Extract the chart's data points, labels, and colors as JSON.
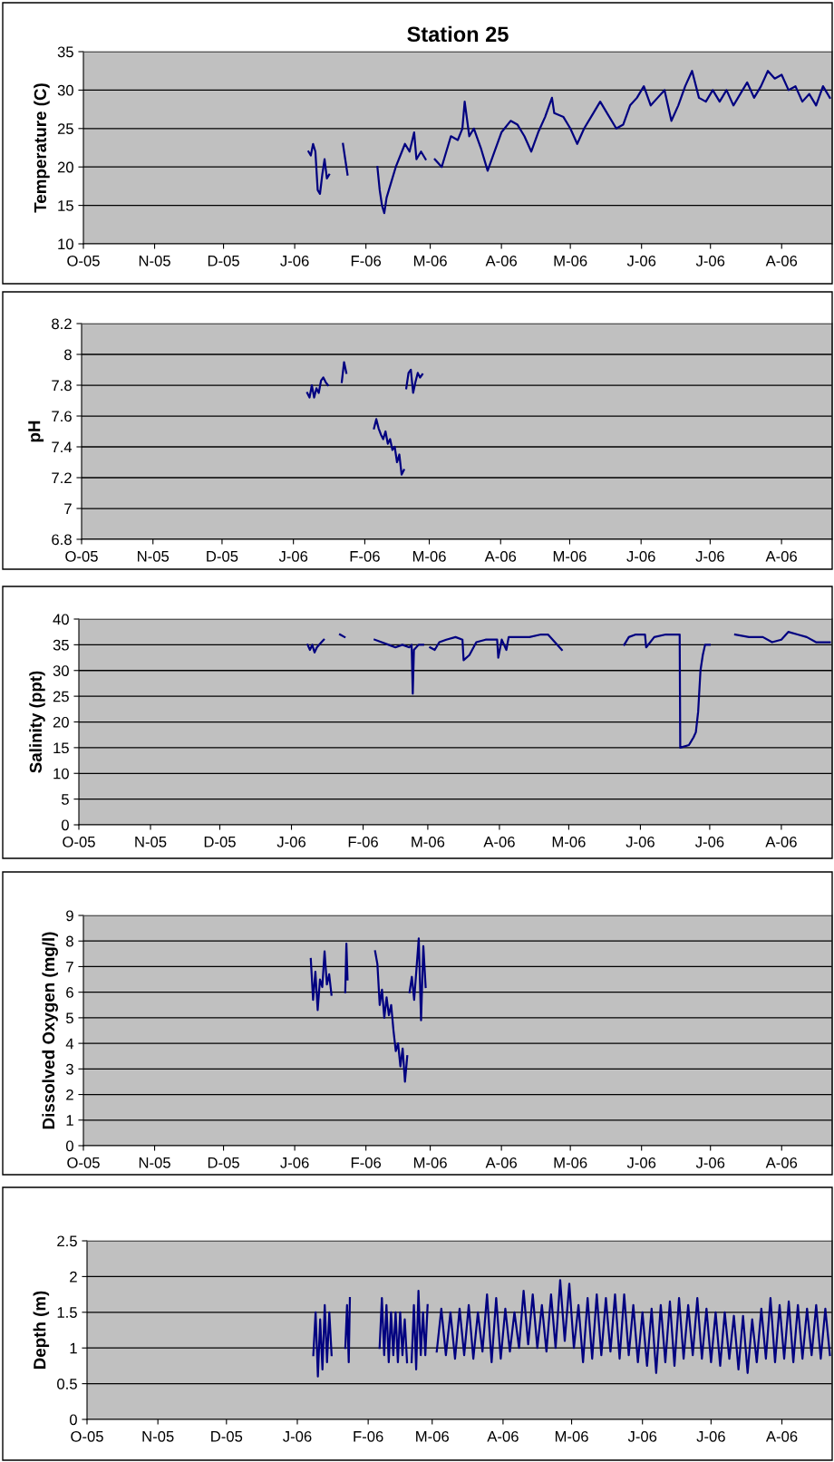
{
  "chart_data": [
    {
      "type": "line",
      "title": "Station 25",
      "ylabel": "Temperature (C)",
      "grid": "y",
      "xlim": [
        "2005-10-01",
        "2006-08-23"
      ],
      "xticks": [
        {
          "value": "2005-10-01",
          "label": "O-05"
        },
        {
          "value": "2005-11-01",
          "label": "N-05"
        },
        {
          "value": "2005-12-01",
          "label": "D-05"
        },
        {
          "value": "2006-01-01",
          "label": "J-06"
        },
        {
          "value": "2006-02-01",
          "label": "F-06"
        },
        {
          "value": "2006-03-01",
          "label": "M-06"
        },
        {
          "value": "2006-04-01",
          "label": "A-06"
        },
        {
          "value": "2006-05-01",
          "label": "M-06"
        },
        {
          "value": "2006-06-01",
          "label": "J-06"
        },
        {
          "value": "2006-07-01",
          "label": "J-06"
        },
        {
          "value": "2006-08-01",
          "label": "A-06"
        }
      ],
      "ylim": [
        10,
        35
      ],
      "yticks": [
        10,
        15,
        20,
        25,
        30,
        35
      ],
      "x": [
        "2006-01-07",
        "2006-01-08",
        "2006-01-09",
        "2006-01-10",
        "2006-01-11",
        "2006-01-12",
        "2006-01-13",
        "2006-01-14",
        "2006-01-15",
        "2006-01-16",
        "2006-01-19",
        "2006-01-22",
        "2006-01-23",
        "2006-01-24",
        "2006-01-30",
        "2006-02-06",
        "2006-02-07",
        "2006-02-08",
        "2006-02-09",
        "2006-02-10",
        "2006-02-12",
        "2006-02-14",
        "2006-02-16",
        "2006-02-18",
        "2006-02-20",
        "2006-02-22",
        "2006-02-23",
        "2006-02-25",
        "2006-02-27",
        "2006-03-01",
        "2006-03-03",
        "2006-03-06",
        "2006-03-10",
        "2006-03-13",
        "2006-03-15",
        "2006-03-16",
        "2006-03-18",
        "2006-03-20",
        "2006-03-23",
        "2006-03-26",
        "2006-03-29",
        "2006-04-01",
        "2006-04-05",
        "2006-04-08",
        "2006-04-11",
        "2006-04-14",
        "2006-04-17",
        "2006-04-20",
        "2006-04-23",
        "2006-04-24",
        "2006-04-28",
        "2006-05-01",
        "2006-05-04",
        "2006-05-07",
        "2006-05-11",
        "2006-05-14",
        "2006-05-17",
        "2006-05-21",
        "2006-05-24",
        "2006-05-27",
        "2006-05-30",
        "2006-06-02",
        "2006-06-05",
        "2006-06-08",
        "2006-06-11",
        "2006-06-14",
        "2006-06-17",
        "2006-06-20",
        "2006-06-23",
        "2006-06-26",
        "2006-06-29",
        "2006-07-02",
        "2006-07-05",
        "2006-07-08",
        "2006-07-11",
        "2006-07-14",
        "2006-07-17",
        "2006-07-20",
        "2006-07-23",
        "2006-07-26",
        "2006-07-29",
        "2006-08-01",
        "2006-08-04",
        "2006-08-07",
        "2006-08-10",
        "2006-08-13",
        "2006-08-16",
        "2006-08-19",
        "2006-08-22"
      ],
      "series": [
        {
          "color": "#000080",
          "values": [
            22,
            21.5,
            23,
            22,
            17,
            16.5,
            19,
            21,
            18.5,
            19,
            null,
            23,
            21,
            19,
            null,
            20,
            17,
            15,
            14,
            16,
            18,
            20,
            21.5,
            23,
            22,
            24.5,
            21,
            22,
            21,
            null,
            21,
            20,
            24,
            23.5,
            25,
            28.5,
            24,
            25,
            22.5,
            19.5,
            22,
            24.5,
            26,
            25.5,
            24,
            22,
            24.5,
            26.5,
            29,
            27,
            26.5,
            25,
            23,
            25,
            27,
            28.5,
            27,
            25,
            25.5,
            28,
            29,
            30.5,
            28,
            29,
            30,
            26,
            28,
            30.5,
            32.5,
            29,
            28.5,
            30,
            28.5,
            30,
            28,
            29.5,
            31,
            29,
            30.5,
            32.5,
            31.5,
            32,
            30,
            30.5,
            28.5,
            29.5,
            28,
            30.5,
            29
          ]
        }
      ]
    },
    {
      "type": "line",
      "ylabel": "pH",
      "grid": "y",
      "xlim": [
        "2005-10-01",
        "2006-08-23"
      ],
      "xticks": [
        {
          "value": "2005-10-01",
          "label": "O-05"
        },
        {
          "value": "2005-11-01",
          "label": "N-05"
        },
        {
          "value": "2005-12-01",
          "label": "D-05"
        },
        {
          "value": "2006-01-01",
          "label": "J-06"
        },
        {
          "value": "2006-02-01",
          "label": "F-06"
        },
        {
          "value": "2006-03-01",
          "label": "M-06"
        },
        {
          "value": "2006-04-01",
          "label": "A-06"
        },
        {
          "value": "2006-05-01",
          "label": "M-06"
        },
        {
          "value": "2006-06-01",
          "label": "J-06"
        },
        {
          "value": "2006-07-01",
          "label": "J-06"
        },
        {
          "value": "2006-08-01",
          "label": "A-06"
        }
      ],
      "ylim": [
        6.8,
        8.2
      ],
      "yticks": [
        6.8,
        7,
        7.2,
        7.4,
        7.6,
        7.8,
        8,
        8.2
      ],
      "x": [
        "2006-01-07",
        "2006-01-08",
        "2006-01-09",
        "2006-01-10",
        "2006-01-11",
        "2006-01-12",
        "2006-01-13",
        "2006-01-14",
        "2006-01-15",
        "2006-01-16",
        "2006-01-19",
        "2006-01-22",
        "2006-01-23",
        "2006-01-24",
        "2006-01-30",
        "2006-02-05",
        "2006-02-06",
        "2006-02-07",
        "2006-02-08",
        "2006-02-09",
        "2006-02-10",
        "2006-02-11",
        "2006-02-12",
        "2006-02-13",
        "2006-02-14",
        "2006-02-15",
        "2006-02-16",
        "2006-02-17",
        "2006-02-18",
        "2006-02-18T18:00",
        "2006-02-19",
        "2006-02-20",
        "2006-02-21",
        "2006-02-22",
        "2006-02-23",
        "2006-02-24",
        "2006-02-25",
        "2006-02-26"
      ],
      "series": [
        {
          "color": "#000080",
          "values": [
            7.75,
            7.72,
            7.8,
            7.72,
            7.78,
            7.75,
            7.83,
            7.85,
            7.82,
            7.8,
            null,
            7.82,
            7.95,
            7.88,
            null,
            7.52,
            7.58,
            7.52,
            7.48,
            7.45,
            7.5,
            7.42,
            7.45,
            7.38,
            7.4,
            7.3,
            7.35,
            7.22,
            7.25,
            null,
            7.78,
            7.88,
            7.9,
            7.75,
            7.82,
            7.88,
            7.85,
            7.87
          ]
        }
      ]
    },
    {
      "type": "line",
      "ylabel": "Salinity (ppt)",
      "grid": "y",
      "xlim": [
        "2005-10-01",
        "2006-08-23"
      ],
      "xticks": [
        {
          "value": "2005-10-01",
          "label": "O-05"
        },
        {
          "value": "2005-11-01",
          "label": "N-05"
        },
        {
          "value": "2005-12-01",
          "label": "D-05"
        },
        {
          "value": "2006-01-01",
          "label": "J-06"
        },
        {
          "value": "2006-02-01",
          "label": "F-06"
        },
        {
          "value": "2006-03-01",
          "label": "M-06"
        },
        {
          "value": "2006-04-01",
          "label": "A-06"
        },
        {
          "value": "2006-05-01",
          "label": "M-06"
        },
        {
          "value": "2006-06-01",
          "label": "J-06"
        },
        {
          "value": "2006-07-01",
          "label": "J-06"
        },
        {
          "value": "2006-08-01",
          "label": "A-06"
        }
      ],
      "ylim": [
        0,
        40
      ],
      "yticks": [
        0,
        5,
        10,
        15,
        20,
        25,
        30,
        35,
        40
      ],
      "x": [
        "2006-01-08",
        "2006-01-09",
        "2006-01-10",
        "2006-01-11",
        "2006-01-12",
        "2006-01-14",
        "2006-01-15",
        "2006-01-18",
        "2006-01-22",
        "2006-01-24",
        "2006-01-30",
        "2006-02-06",
        "2006-02-09",
        "2006-02-12",
        "2006-02-15",
        "2006-02-18",
        "2006-02-21",
        "2006-02-22",
        "2006-02-22T12:00",
        "2006-02-23",
        "2006-02-25",
        "2006-02-27",
        "2006-03-01",
        "2006-03-02",
        "2006-03-04",
        "2006-03-06",
        "2006-03-09",
        "2006-03-13",
        "2006-03-16",
        "2006-03-16T12:00",
        "2006-03-19",
        "2006-03-22",
        "2006-03-26",
        "2006-03-31",
        "2006-03-31T12:00",
        "2006-04-02",
        "2006-04-04",
        "2006-04-05",
        "2006-04-10",
        "2006-04-14",
        "2006-04-19",
        "2006-04-22",
        "2006-04-25",
        "2006-04-28",
        "2006-05-10",
        "2006-05-25",
        "2006-05-27",
        "2006-05-30",
        "2006-06-03",
        "2006-06-03T12:00",
        "2006-06-07",
        "2006-06-12",
        "2006-06-18",
        "2006-06-18T06:00",
        "2006-06-22",
        "2006-06-24",
        "2006-06-25",
        "2006-06-26",
        "2006-06-27",
        "2006-06-28",
        "2006-06-29",
        "2006-07-01",
        "2006-07-06",
        "2006-07-12",
        "2006-07-18",
        "2006-07-24",
        "2006-07-28",
        "2006-08-01",
        "2006-08-04",
        "2006-08-08",
        "2006-08-12",
        "2006-08-16",
        "2006-08-22"
      ],
      "series": [
        {
          "color": "#000080",
          "values": [
            35,
            34,
            35,
            33.5,
            34.5,
            35.5,
            36,
            null,
            37,
            36.5,
            null,
            36,
            35.5,
            35,
            34.5,
            35,
            34.5,
            35,
            25.5,
            34,
            35,
            35,
            null,
            34.5,
            34,
            35.5,
            36,
            36.5,
            36,
            32,
            33,
            35.5,
            36,
            36,
            32.5,
            36,
            34,
            36.5,
            36.5,
            36.5,
            37,
            37,
            35.5,
            34,
            null,
            35,
            36.5,
            37,
            37,
            34.5,
            36.5,
            37,
            37,
            15,
            15.5,
            17,
            18,
            22,
            30,
            33,
            35,
            35,
            null,
            37,
            36.5,
            36.5,
            35.5,
            36,
            37.5,
            37,
            36.5,
            35.5,
            35.5
          ]
        }
      ]
    },
    {
      "type": "line",
      "ylabel": "Dissolved Oxygen (mg/l)",
      "grid": "y",
      "xlim": [
        "2005-10-01",
        "2006-08-23"
      ],
      "xticks": [
        {
          "value": "2005-10-01",
          "label": "O-05"
        },
        {
          "value": "2005-11-01",
          "label": "N-05"
        },
        {
          "value": "2005-12-01",
          "label": "D-05"
        },
        {
          "value": "2006-01-01",
          "label": "J-06"
        },
        {
          "value": "2006-02-01",
          "label": "F-06"
        },
        {
          "value": "2006-03-01",
          "label": "M-06"
        },
        {
          "value": "2006-04-01",
          "label": "A-06"
        },
        {
          "value": "2006-05-01",
          "label": "M-06"
        },
        {
          "value": "2006-06-01",
          "label": "J-06"
        },
        {
          "value": "2006-07-01",
          "label": "J-06"
        },
        {
          "value": "2006-08-01",
          "label": "A-06"
        }
      ],
      "ylim": [
        0,
        9
      ],
      "yticks": [
        0,
        1,
        2,
        3,
        4,
        5,
        6,
        7,
        8,
        9
      ],
      "x": [
        "2006-01-08",
        "2006-01-09",
        "2006-01-10",
        "2006-01-11",
        "2006-01-12",
        "2006-01-13",
        "2006-01-14",
        "2006-01-15",
        "2006-01-16",
        "2006-01-17",
        "2006-01-20",
        "2006-01-23",
        "2006-01-23T12:00",
        "2006-01-24",
        "2006-01-30",
        "2006-02-05",
        "2006-02-06",
        "2006-02-07",
        "2006-02-08",
        "2006-02-09",
        "2006-02-10",
        "2006-02-11",
        "2006-02-12",
        "2006-02-13",
        "2006-02-14",
        "2006-02-15",
        "2006-02-16",
        "2006-02-17",
        "2006-02-18",
        "2006-02-19",
        "2006-02-19T18:00",
        "2006-02-20",
        "2006-02-21",
        "2006-02-22",
        "2006-02-23",
        "2006-02-24",
        "2006-02-25",
        "2006-02-26",
        "2006-02-27"
      ],
      "series": [
        {
          "color": "#000080",
          "values": [
            7.3,
            5.7,
            6.8,
            5.3,
            6.5,
            6.2,
            7.6,
            6.3,
            6.7,
            5.9,
            null,
            6.0,
            7.9,
            6.5,
            null,
            7.6,
            7.1,
            5.5,
            6.1,
            5.0,
            5.8,
            5.1,
            5.5,
            4.5,
            3.7,
            4.0,
            3.1,
            3.8,
            2.5,
            3.5,
            null,
            6.0,
            6.6,
            5.7,
            6.9,
            8.1,
            4.9,
            7.8,
            6.2
          ]
        }
      ]
    },
    {
      "type": "line",
      "ylabel": "Depth (m)",
      "grid": "y",
      "xlim": [
        "2005-10-01",
        "2006-08-23"
      ],
      "xticks": [
        {
          "value": "2005-10-01",
          "label": "O-05"
        },
        {
          "value": "2005-11-01",
          "label": "N-05"
        },
        {
          "value": "2005-12-01",
          "label": "D-05"
        },
        {
          "value": "2006-01-01",
          "label": "J-06"
        },
        {
          "value": "2006-02-01",
          "label": "F-06"
        },
        {
          "value": "2006-03-01",
          "label": "M-06"
        },
        {
          "value": "2006-04-01",
          "label": "A-06"
        },
        {
          "value": "2006-05-01",
          "label": "M-06"
        },
        {
          "value": "2006-06-01",
          "label": "J-06"
        },
        {
          "value": "2006-07-01",
          "label": "J-06"
        },
        {
          "value": "2006-08-01",
          "label": "A-06"
        }
      ],
      "ylim": [
        0,
        2.5
      ],
      "yticks": [
        0,
        0.5,
        1,
        1.5,
        2,
        2.5
      ],
      "x": [
        "2006-01-08",
        "2006-01-09",
        "2006-01-10",
        "2006-01-11",
        "2006-01-12",
        "2006-01-13",
        "2006-01-14",
        "2006-01-15",
        "2006-01-16",
        "2006-01-19",
        "2006-01-22",
        "2006-01-22T18:00",
        "2006-01-23T12:00",
        "2006-01-24",
        "2006-01-30",
        "2006-02-06",
        "2006-02-07",
        "2006-02-08",
        "2006-02-09",
        "2006-02-10",
        "2006-02-11",
        "2006-02-12",
        "2006-02-13",
        "2006-02-14",
        "2006-02-15",
        "2006-02-16",
        "2006-02-17",
        "2006-02-18",
        "2006-02-19",
        "2006-02-20",
        "2006-02-21",
        "2006-02-22",
        "2006-02-23",
        "2006-02-24",
        "2006-02-25",
        "2006-02-26",
        "2006-02-27",
        "2006-03-01",
        "2006-03-03",
        "2006-03-05",
        "2006-03-07",
        "2006-03-09",
        "2006-03-11",
        "2006-03-13",
        "2006-03-15",
        "2006-03-17",
        "2006-03-19",
        "2006-03-21",
        "2006-03-23",
        "2006-03-25",
        "2006-03-27",
        "2006-03-29",
        "2006-03-31",
        "2006-04-02",
        "2006-04-04",
        "2006-04-06",
        "2006-04-08",
        "2006-04-10",
        "2006-04-12",
        "2006-04-14",
        "2006-04-16",
        "2006-04-18",
        "2006-04-20",
        "2006-04-22",
        "2006-04-24",
        "2006-04-26",
        "2006-04-28",
        "2006-04-30",
        "2006-05-02",
        "2006-05-04",
        "2006-05-06",
        "2006-05-08",
        "2006-05-10",
        "2006-05-12",
        "2006-05-14",
        "2006-05-16",
        "2006-05-18",
        "2006-05-20",
        "2006-05-22",
        "2006-05-24",
        "2006-05-26",
        "2006-05-28",
        "2006-05-30",
        "2006-06-01",
        "2006-06-03",
        "2006-06-05",
        "2006-06-07",
        "2006-06-09",
        "2006-06-11",
        "2006-06-13",
        "2006-06-15",
        "2006-06-17",
        "2006-06-19",
        "2006-06-21",
        "2006-06-23",
        "2006-06-25",
        "2006-06-27",
        "2006-06-29",
        "2006-07-01",
        "2006-07-03",
        "2006-07-05",
        "2006-07-07",
        "2006-07-09",
        "2006-07-11",
        "2006-07-13",
        "2006-07-15",
        "2006-07-17",
        "2006-07-19",
        "2006-07-21",
        "2006-07-23",
        "2006-07-25",
        "2006-07-27",
        "2006-07-29",
        "2006-07-31",
        "2006-08-02",
        "2006-08-04",
        "2006-08-06",
        "2006-08-08",
        "2006-08-10",
        "2006-08-12",
        "2006-08-14",
        "2006-08-16",
        "2006-08-18",
        "2006-08-20",
        "2006-08-22"
      ],
      "series": [
        {
          "color": "#000080",
          "values": [
            0.9,
            1.5,
            0.6,
            1.4,
            0.7,
            1.6,
            0.8,
            1.5,
            0.9,
            null,
            1.0,
            1.6,
            0.8,
            1.7,
            null,
            1.0,
            1.7,
            0.9,
            1.6,
            0.8,
            1.5,
            0.9,
            1.5,
            0.8,
            1.5,
            0.9,
            1.4,
            0.8,
            null,
            0.8,
            1.6,
            0.7,
            1.8,
            0.9,
            1.5,
            0.9,
            1.6,
            null,
            0.95,
            1.55,
            0.9,
            1.5,
            0.85,
            1.55,
            0.9,
            1.6,
            0.85,
            1.5,
            0.95,
            1.75,
            0.8,
            1.7,
            0.85,
            1.55,
            0.95,
            1.5,
            1.0,
            1.8,
            1.05,
            1.75,
            1.0,
            1.6,
            0.95,
            1.75,
            1.0,
            1.95,
            1.1,
            1.9,
            1.0,
            1.6,
            0.8,
            1.7,
            0.85,
            1.75,
            0.9,
            1.7,
            0.95,
            1.75,
            0.85,
            1.75,
            0.9,
            1.6,
            0.8,
            1.5,
            0.75,
            1.55,
            0.65,
            1.6,
            0.8,
            1.65,
            0.75,
            1.7,
            0.85,
            1.6,
            0.9,
            1.7,
            0.85,
            1.55,
            0.8,
            1.5,
            0.75,
            1.5,
            0.85,
            1.45,
            0.7,
            1.45,
            0.65,
            1.4,
            0.8,
            1.55,
            0.85,
            1.7,
            0.8,
            1.6,
            0.85,
            1.65,
            0.8,
            1.6,
            0.85,
            1.55,
            0.9,
            1.6,
            0.85,
            1.55,
            0.9
          ]
        }
      ]
    }
  ]
}
